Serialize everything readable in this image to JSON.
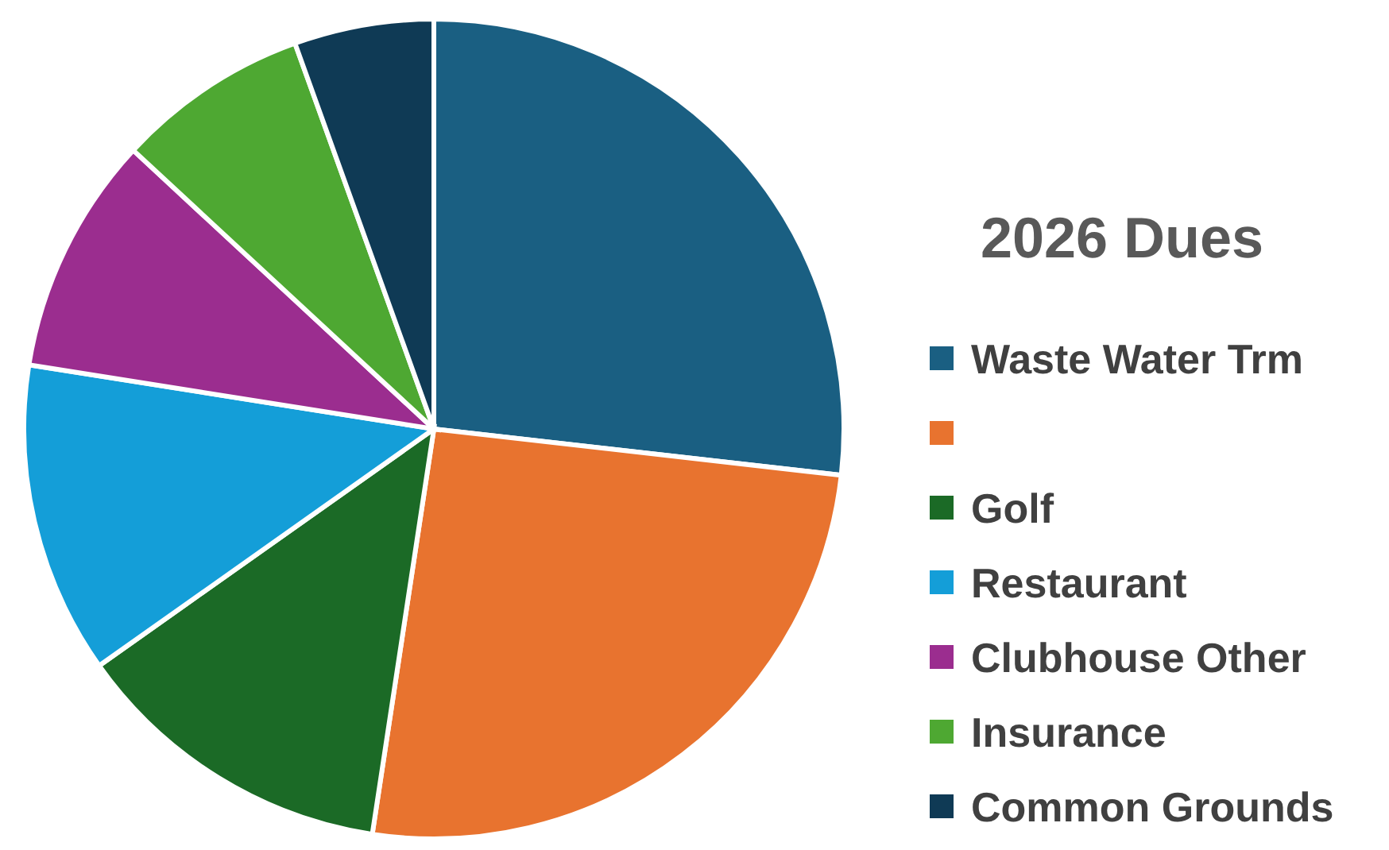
{
  "chart_data": {
    "type": "pie",
    "title": "2026 Dues",
    "categories": [
      "Waste Water Trm",
      null,
      "Golf",
      "Restaurant",
      "Clubhouse Other",
      "Insurance",
      "Common Grounds"
    ],
    "values": [
      26.8,
      25.6,
      12.8,
      12.3,
      9.4,
      7.6,
      5.5
    ],
    "colors": [
      "#1a5f82",
      "#e8732f",
      "#1b6a26",
      "#149ed8",
      "#9b2d8f",
      "#4ea832",
      "#0f3a55"
    ],
    "legend": "right"
  }
}
